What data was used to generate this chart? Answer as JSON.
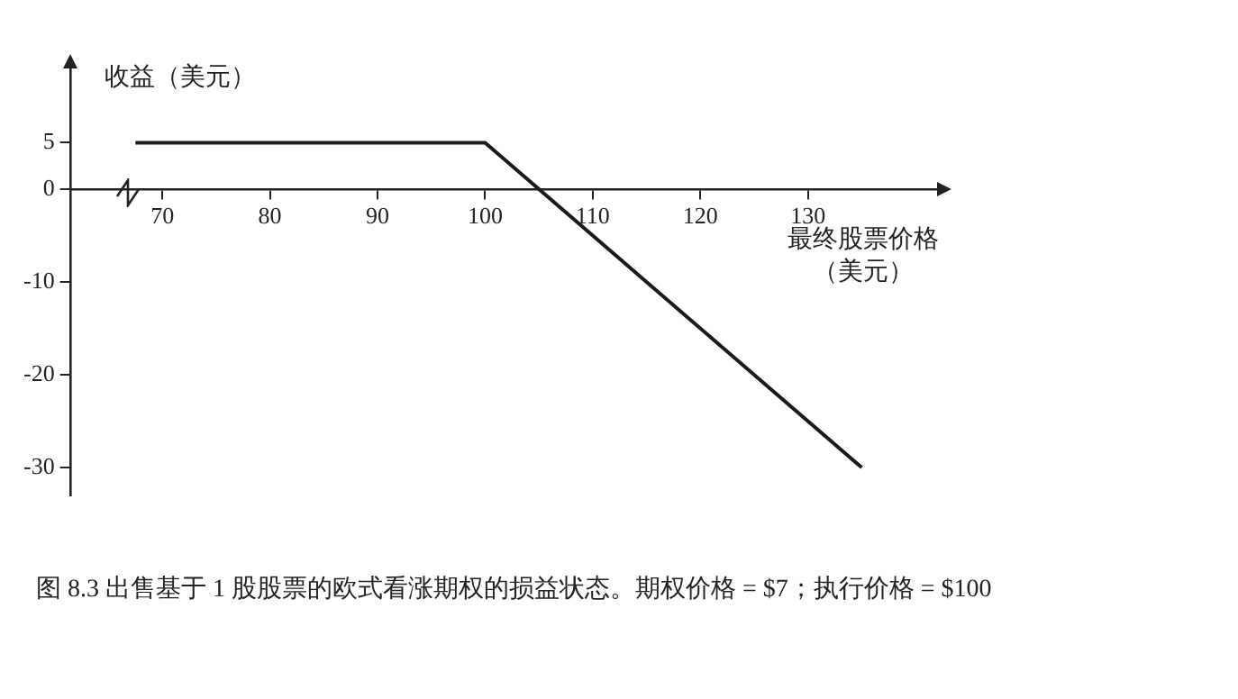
{
  "chart_data": {
    "type": "line",
    "xlabel": "最终股票价格（美元）",
    "ylabel": "收益（美元）",
    "series": [
      {
        "color": "#1a1a1a",
        "x": [
          67.5,
          100,
          135
        ],
        "values": [
          5,
          5,
          -30
        ]
      }
    ],
    "xlim": [
      61.5,
      142
    ],
    "xticks": [
      70,
      80,
      90,
      100,
      110,
      120,
      130
    ],
    "ylim": [
      -33,
      13
    ],
    "yticks": [
      -30,
      -20,
      -10,
      0,
      5
    ],
    "marker": "none",
    "legend": false,
    "annotations": [
      "图 8.3  出售基于 1 股股票的欧式看涨期权的损益状态。期权价格 = $7；执行价格 = $100"
    ]
  }
}
